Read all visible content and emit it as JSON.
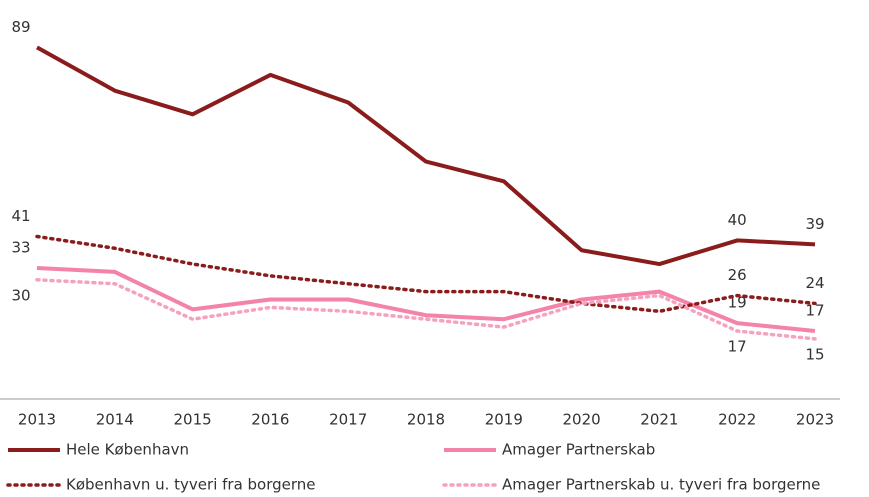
{
  "chart_data": {
    "type": "line",
    "categories": [
      "2013",
      "2014",
      "2015",
      "2016",
      "2017",
      "2018",
      "2019",
      "2020",
      "2021",
      "2022",
      "2023"
    ],
    "ylim": [
      0,
      100
    ],
    "series": [
      {
        "name": "Hele København",
        "color": "#8b1c1c",
        "style": "solid",
        "values": [
          89,
          78,
          72,
          82,
          75,
          60,
          55,
          37.5,
          34,
          40,
          39
        ],
        "value_labels": [
          "89",
          null,
          null,
          null,
          null,
          null,
          null,
          null,
          null,
          "40",
          "39"
        ]
      },
      {
        "name": "Amager Partnerskab",
        "color": "#f383a9",
        "style": "solid",
        "values": [
          33,
          32,
          22.5,
          25,
          25,
          21,
          20,
          25,
          27,
          19,
          17
        ],
        "value_labels": [
          "33",
          null,
          null,
          null,
          null,
          null,
          null,
          null,
          null,
          "19",
          "17"
        ]
      },
      {
        "name": "København u. tyveri fra borgerne",
        "color": "#8b1c1c",
        "style": "dotted",
        "values": [
          41,
          38,
          34,
          31,
          29,
          27,
          27,
          24,
          22,
          26,
          24
        ],
        "value_labels": [
          "41",
          null,
          null,
          null,
          null,
          null,
          null,
          null,
          null,
          "26",
          "24"
        ]
      },
      {
        "name": "Amager Partnerskab u. tyveri fra borgerne",
        "color": "#f7a1c0",
        "style": "dotted",
        "values": [
          30,
          29,
          20,
          23,
          22,
          20,
          18,
          24,
          26,
          17,
          15
        ],
        "value_labels": [
          "30",
          null,
          null,
          null,
          null,
          null,
          null,
          null,
          null,
          "17",
          "15"
        ]
      }
    ]
  }
}
